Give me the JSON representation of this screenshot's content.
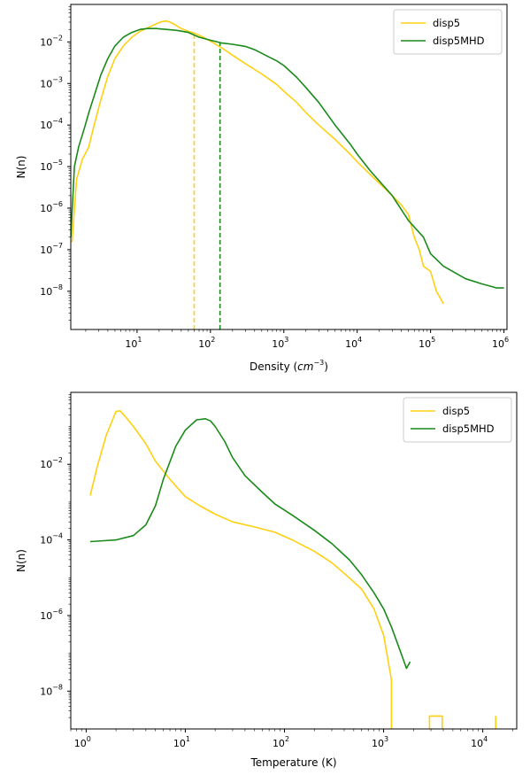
{
  "colors": {
    "disp5": "#ffd012",
    "disp5MHD": "#1a8a1a"
  },
  "chart_data": [
    {
      "type": "line",
      "title": "",
      "xlabel": "Density (",
      "xlabel_math": "cm",
      "xlabel_exp": "−3",
      "xlabel_close": ")",
      "ylabel": "N(n)",
      "xscale": "log",
      "yscale": "log",
      "xlim": [
        1.25,
        1100000
      ],
      "ylim": [
        1.2e-09,
        0.08
      ],
      "grid": false,
      "legend_position": "top-right",
      "xticks": [
        {
          "base": "10",
          "exp": "1",
          "value": 10
        },
        {
          "base": "10",
          "exp": "2",
          "value": 100
        },
        {
          "base": "10",
          "exp": "3",
          "value": 1000
        },
        {
          "base": "10",
          "exp": "4",
          "value": 10000
        },
        {
          "base": "10",
          "exp": "5",
          "value": 100000
        },
        {
          "base": "10",
          "exp": "6",
          "value": 1000000
        }
      ],
      "yticks": [
        {
          "base": "10",
          "exp": "−8",
          "value": 1e-08
        },
        {
          "base": "10",
          "exp": "−7",
          "value": 1e-07
        },
        {
          "base": "10",
          "exp": "−6",
          "value": 1e-06
        },
        {
          "base": "10",
          "exp": "−5",
          "value": 1e-05
        },
        {
          "base": "10",
          "exp": "−4",
          "value": 0.0001
        },
        {
          "base": "10",
          "exp": "−3",
          "value": 0.001
        },
        {
          "base": "10",
          "exp": "−2",
          "value": 0.01
        }
      ],
      "series": [
        {
          "name": "disp5",
          "color_key": "disp5",
          "x": [
            1.3,
            1.5,
            1.8,
            2.2,
            2.6,
            3.2,
            4,
            5,
            6.5,
            8.5,
            11,
            14,
            18,
            22,
            25,
            28,
            33,
            40,
            50,
            62,
            80,
            110,
            150,
            200,
            300,
            500,
            800,
            1000,
            1500,
            2000,
            3000,
            5000,
            8000,
            10000,
            15000,
            20000,
            30000,
            40000,
            50000,
            60000,
            70000,
            80000,
            100000,
            120000,
            150000
          ],
          "y": [
            1.5e-07,
            5e-06,
            1.5e-05,
            3e-05,
            0.0001,
            0.0004,
            0.0015,
            0.004,
            0.008,
            0.013,
            0.018,
            0.022,
            0.027,
            0.031,
            0.032,
            0.03,
            0.026,
            0.021,
            0.018,
            0.016,
            0.013,
            0.0095,
            0.0068,
            0.0048,
            0.003,
            0.0017,
            0.00095,
            0.00065,
            0.00035,
            0.0002,
            0.0001,
            4.5e-05,
            2e-05,
            1.3e-05,
            6.5e-06,
            4e-06,
            2e-06,
            1.2e-06,
            7e-07,
            2e-07,
            1e-07,
            4e-08,
            3e-08,
            1e-08,
            5e-09
          ]
        },
        {
          "name": "disp5MHD",
          "color_key": "disp5MHD",
          "x": [
            1.25,
            1.4,
            1.6,
            1.9,
            2.2,
            2.6,
            3.2,
            4,
            5,
            6.5,
            8.5,
            11,
            14,
            18,
            25,
            35,
            50,
            70,
            100,
            140,
            200,
            300,
            400,
            600,
            800,
            1000,
            1500,
            2000,
            3000,
            5000,
            8000,
            10000,
            15000,
            20000,
            30000,
            50000,
            80000,
            100000,
            150000,
            200000,
            300000,
            500000,
            800000,
            1000000
          ],
          "y": [
            2e-07,
            1e-05,
            3e-05,
            8e-05,
            0.0002,
            0.0005,
            0.0016,
            0.004,
            0.008,
            0.013,
            0.017,
            0.02,
            0.021,
            0.021,
            0.02,
            0.019,
            0.017,
            0.013,
            0.011,
            0.0095,
            0.0088,
            0.0078,
            0.0065,
            0.0045,
            0.0035,
            0.0027,
            0.0014,
            0.0008,
            0.00035,
            0.0001,
            3.5e-05,
            2e-05,
            8e-06,
            4.5e-06,
            2e-06,
            5e-07,
            2e-07,
            8e-08,
            4e-08,
            3e-08,
            2e-08,
            1.5e-08,
            1.2e-08,
            1.2e-08
          ]
        }
      ],
      "vlines": [
        {
          "x": 60,
          "color_key": "disp5",
          "style": "dashed"
        },
        {
          "x": 135,
          "color_key": "disp5MHD",
          "style": "dashed"
        }
      ]
    },
    {
      "type": "line",
      "title": "",
      "xlabel": "Temperature (K)",
      "ylabel": "N(n)",
      "xscale": "log",
      "yscale": "log",
      "xlim": [
        0.7,
        22000
      ],
      "ylim": [
        1e-09,
        0.8
      ],
      "grid": false,
      "legend_position": "top-right",
      "xticks": [
        {
          "base": "10",
          "exp": "0",
          "value": 1
        },
        {
          "base": "10",
          "exp": "1",
          "value": 10
        },
        {
          "base": "10",
          "exp": "2",
          "value": 100
        },
        {
          "base": "10",
          "exp": "3",
          "value": 1000
        },
        {
          "base": "10",
          "exp": "4",
          "value": 10000
        }
      ],
      "yticks": [
        {
          "base": "10",
          "exp": "−8",
          "value": 1e-08
        },
        {
          "base": "10",
          "exp": "−6",
          "value": 1e-06
        },
        {
          "base": "10",
          "exp": "−4",
          "value": 0.0001
        },
        {
          "base": "10",
          "exp": "−2",
          "value": 0.01
        }
      ],
      "series": [
        {
          "name": "disp5",
          "color_key": "disp5",
          "x": [
            1.1,
            1.3,
            1.6,
            2.0,
            2.2,
            2.5,
            3,
            4,
            5,
            7,
            10,
            14,
            20,
            30,
            50,
            80,
            120,
            200,
            300,
            450,
            600,
            800,
            1000,
            1200,
            1200
          ],
          "y": [
            0.0015,
            0.009,
            0.06,
            0.25,
            0.26,
            0.18,
            0.1,
            0.035,
            0.012,
            0.004,
            0.0014,
            0.0008,
            0.00048,
            0.0003,
            0.00022,
            0.00016,
            0.0001,
            5e-05,
            2.5e-05,
            1e-05,
            5e-06,
            1.5e-06,
            3e-07,
            2e-08,
            1e-09
          ]
        },
        {
          "name": "disp5",
          "color_key": "disp5",
          "x": [
            2900,
            2900,
            3900,
            3900
          ],
          "y": [
            1e-09,
            2.2e-09,
            2.2e-09,
            1e-09
          ]
        },
        {
          "name": "disp5",
          "color_key": "disp5",
          "x": [
            13500,
            13500
          ],
          "y": [
            1e-09,
            2.2e-09
          ]
        },
        {
          "name": "disp5MHD",
          "color_key": "disp5MHD",
          "x": [
            1.1,
            1.5,
            2,
            3,
            4,
            5,
            6,
            8,
            10,
            13,
            16,
            18,
            20,
            25,
            30,
            40,
            60,
            80,
            120,
            200,
            300,
            450,
            600,
            800,
            1000,
            1200,
            1500,
            1700,
            1850
          ],
          "y": [
            9e-05,
            9.5e-05,
            0.0001,
            0.00013,
            0.00025,
            0.0008,
            0.004,
            0.03,
            0.08,
            0.15,
            0.16,
            0.14,
            0.1,
            0.04,
            0.015,
            0.005,
            0.0018,
            0.0009,
            0.00045,
            0.00018,
            8e-05,
            3e-05,
            1.2e-05,
            4e-06,
            1.5e-06,
            5e-07,
            1e-07,
            4e-08,
            6e-08
          ]
        }
      ],
      "vlines": []
    }
  ]
}
